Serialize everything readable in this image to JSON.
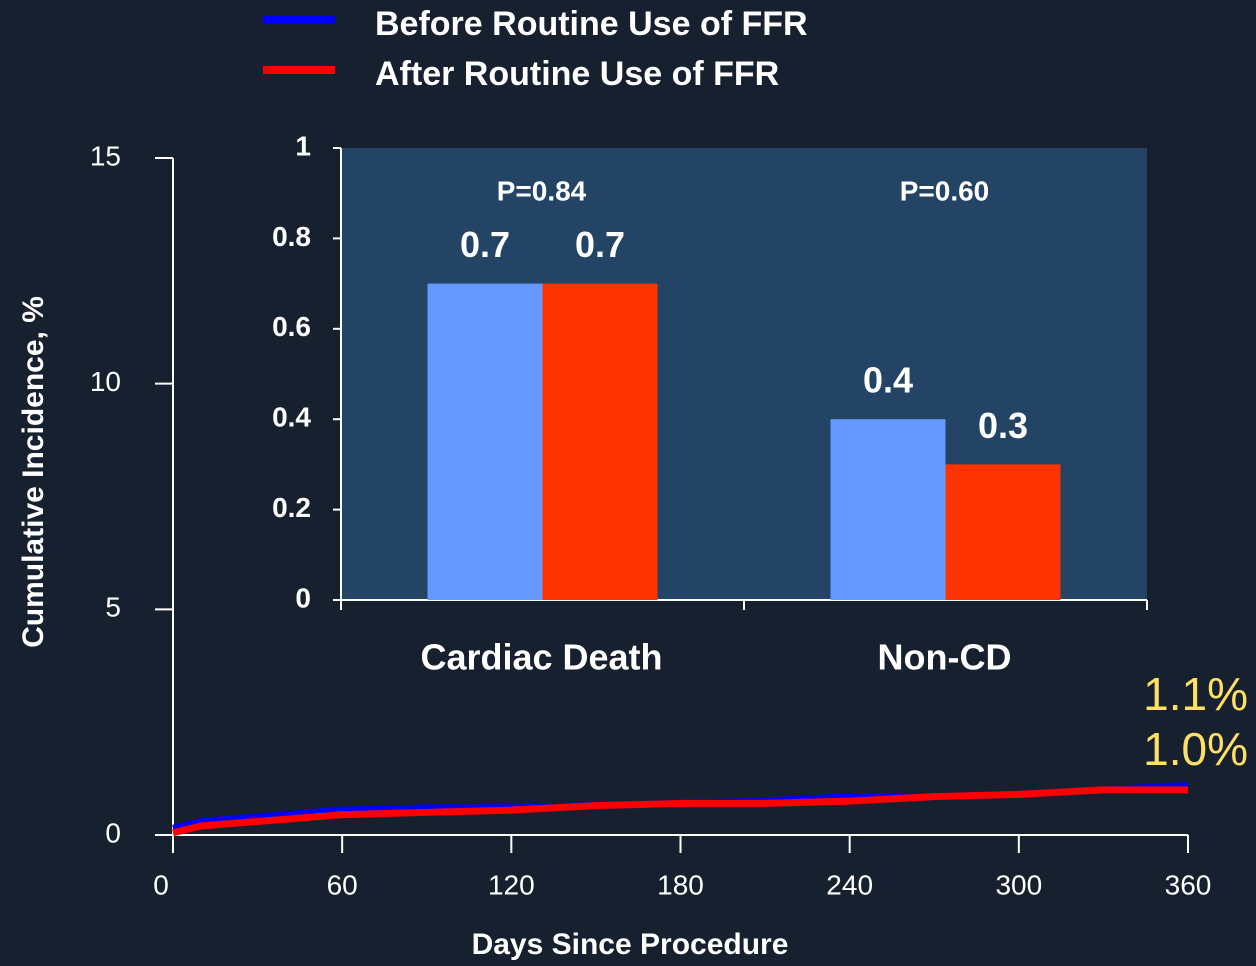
{
  "chart_data": [
    {
      "type": "line",
      "x_label": "Days Since Procedure",
      "y_label": "Cumulative Incidence, %",
      "x": [
        0,
        10,
        40,
        60,
        90,
        120,
        150,
        180,
        210,
        240,
        270,
        300,
        330,
        360
      ],
      "series": [
        {
          "name": "Before Routine Use of FFR",
          "color": "#0000ff",
          "values": [
            0.15,
            0.3,
            0.45,
            0.55,
            0.6,
            0.6,
            0.65,
            0.7,
            0.75,
            0.85,
            0.85,
            0.9,
            1.0,
            1.1
          ]
        },
        {
          "name": "After Routine Use of FFR",
          "color": "#ff0000",
          "values": [
            0.05,
            0.2,
            0.35,
            0.45,
            0.5,
            0.55,
            0.65,
            0.7,
            0.7,
            0.75,
            0.85,
            0.9,
            1.0,
            1.0
          ]
        }
      ],
      "annotations": [
        "1.1%",
        "1.0%"
      ],
      "xlim": [
        0,
        360
      ],
      "xticks": [
        0,
        60,
        120,
        180,
        240,
        300,
        360
      ],
      "ylim": [
        0,
        15
      ],
      "yticks": [
        0,
        5,
        10,
        15
      ]
    },
    {
      "type": "bar",
      "categories": [
        "Cardiac Death",
        "Non-CD"
      ],
      "annotations": [
        "P=0.84",
        "P=0.60"
      ],
      "series": [
        {
          "color": "#6699ff",
          "values": [
            0.7,
            0.4
          ]
        },
        {
          "color": "#ff3300",
          "values": [
            0.7,
            0.3
          ]
        }
      ],
      "ylim": [
        0,
        1
      ],
      "yticks": [
        0,
        0.2,
        0.4,
        0.6,
        0.8,
        1
      ]
    }
  ]
}
